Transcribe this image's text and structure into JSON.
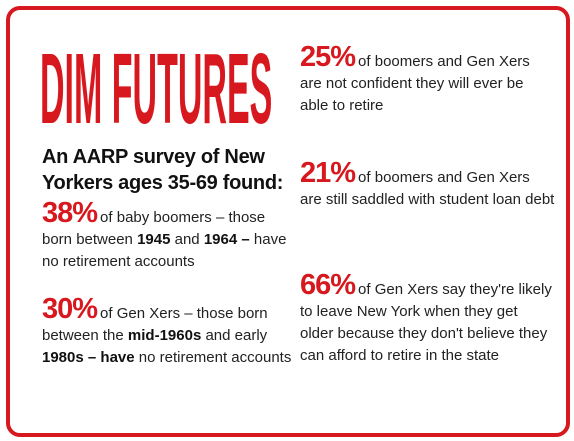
{
  "title": "DIM FUTURES",
  "intro": "An AARP survey of New Yorkers ages 35-69 found:",
  "stats": [
    {
      "figure": "38%",
      "segments": [
        {
          "text": "of baby boomers – those born between",
          "bold": false
        },
        {
          "text": "1945",
          "bold": true
        },
        {
          "text": "and",
          "bold": false
        },
        {
          "text": "1964 –",
          "bold": true
        },
        {
          "text": "have no retirement accounts",
          "bold": false
        }
      ]
    },
    {
      "figure": "30%",
      "segments": [
        {
          "text": "of Gen Xers – those born between the",
          "bold": false
        },
        {
          "text": "mid-1960s",
          "bold": true
        },
        {
          "text": "and early",
          "bold": false
        },
        {
          "text": "1980s",
          "bold": true
        },
        {
          "text": "– have",
          "bold": true
        },
        {
          "text": "no retirement accounts",
          "bold": false
        }
      ]
    },
    {
      "figure": "25%",
      "segments": [
        {
          "text": "of boomers and Gen Xers are not confident they will ever be able to retire",
          "bold": false
        }
      ]
    },
    {
      "figure": "21%",
      "segments": [
        {
          "text": "of boomers and Gen Xers are still saddled with student loan debt",
          "bold": false
        }
      ]
    },
    {
      "figure": "66%",
      "segments": [
        {
          "text": "of Gen Xers say they're likely to leave New York when they get older because they don't believe they can afford to retire in the state",
          "bold": false
        }
      ]
    }
  ]
}
